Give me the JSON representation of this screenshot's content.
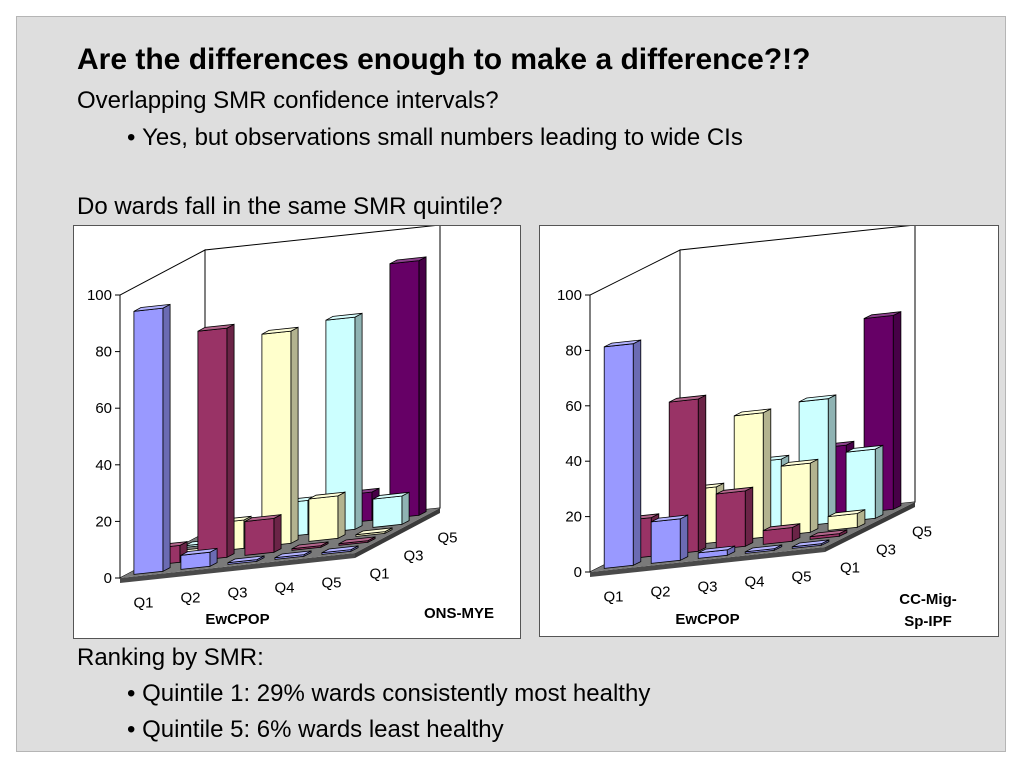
{
  "slide": {
    "title": "Are the differences enough to make a difference?!?",
    "line1": "Overlapping SMR confidence intervals?",
    "line2": "Yes, but observations small numbers leading to wide CIs",
    "line3": "Do wards fall in the same SMR quintile?",
    "line4": "Ranking by SMR:",
    "line5": "Quintile 1: 29% wards consistently most healthy",
    "line6": "Quintile 5: 6% wards least healthy"
  },
  "colors": {
    "Q1": "#9999ff",
    "Q2": "#993366",
    "Q3": "#ffffcc",
    "Q4": "#ccffff",
    "Q5": "#660066",
    "floor": "#7a7a7a"
  },
  "chart_data": [
    {
      "type": "bar",
      "title": "",
      "xlabel": "EwCPOP",
      "ylabel": "ONS-MYE",
      "x_categories": [
        "Q1",
        "Q2",
        "Q3",
        "Q4",
        "Q5"
      ],
      "depth_tick_labels": [
        "Q1",
        "Q3",
        "Q5"
      ],
      "ylim": [
        0,
        100
      ],
      "yticks": [
        0,
        20,
        40,
        60,
        80,
        100
      ],
      "grid": false,
      "series": [
        {
          "name": "Q1",
          "values": [
            93,
            5,
            0,
            0,
            0
          ]
        },
        {
          "name": "Q2",
          "values": [
            6,
            81,
            12,
            0,
            0
          ]
        },
        {
          "name": "Q3",
          "values": [
            0,
            10,
            75,
            15,
            0
          ]
        },
        {
          "name": "Q4",
          "values": [
            0,
            0,
            12,
            75,
            10
          ]
        },
        {
          "name": "Q5",
          "values": [
            0,
            0,
            0,
            10,
            90
          ]
        }
      ]
    },
    {
      "type": "bar",
      "title": "",
      "xlabel": "EwCPOP",
      "ylabel": "CC-Mig-Sp-IPF",
      "x_categories": [
        "Q1",
        "Q2",
        "Q3",
        "Q4",
        "Q5"
      ],
      "depth_tick_labels": [
        "Q1",
        "Q3",
        "Q5"
      ],
      "ylim": [
        0,
        100
      ],
      "yticks": [
        0,
        20,
        40,
        60,
        80,
        100
      ],
      "grid": false,
      "series": [
        {
          "name": "Q1",
          "values": [
            80,
            15,
            2,
            0,
            0
          ]
        },
        {
          "name": "Q2",
          "values": [
            14,
            55,
            20,
            5,
            1
          ]
        },
        {
          "name": "Q3",
          "values": [
            5,
            20,
            45,
            25,
            5
          ]
        },
        {
          "name": "Q4",
          "values": [
            0,
            5,
            25,
            45,
            25
          ]
        },
        {
          "name": "Q5",
          "values": [
            0,
            0,
            5,
            25,
            70
          ]
        }
      ]
    }
  ]
}
